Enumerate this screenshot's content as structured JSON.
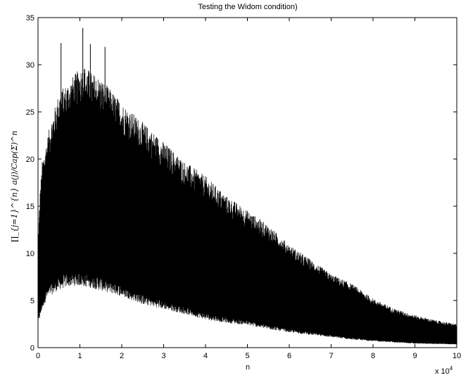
{
  "chart_data": {
    "type": "line",
    "title": "Testing the Widom condition)",
    "xlabel": "n",
    "ylabel": "∏_{j=1}^{n} a(j)/Cap(Σ)^n",
    "x_multiplier_label": "x 10",
    "x_multiplier_exponent": "4",
    "xlim": [
      0,
      10
    ],
    "ylim": [
      0,
      35
    ],
    "xticks": [
      "0",
      "1",
      "2",
      "3",
      "4",
      "5",
      "6",
      "7",
      "8",
      "9",
      "10"
    ],
    "yticks": [
      "0",
      "5",
      "10",
      "15",
      "20",
      "25",
      "30",
      "35"
    ],
    "grid": false,
    "color": "#000000",
    "series": [
      {
        "upper_envelope": {
          "x": [
            0,
            0.05,
            0.1,
            0.2,
            0.3,
            0.5,
            0.7,
            0.9,
            1.0,
            1.1,
            1.3,
            1.5,
            1.8,
            2.0,
            2.5,
            3.0,
            3.5,
            4.0,
            4.5,
            5.0,
            5.5,
            6.0,
            6.5,
            7.0,
            7.5,
            8.0,
            8.5,
            9.0,
            9.5,
            10.0
          ],
          "y": [
            11,
            16,
            19,
            21,
            23,
            26,
            27,
            28,
            28.5,
            28.8,
            28,
            27.5,
            26,
            25,
            23,
            21,
            19,
            17.5,
            15.5,
            14,
            12.5,
            10.5,
            9,
            7.5,
            6.5,
            5,
            4,
            3.3,
            2.8,
            2.4
          ]
        },
        "lower_envelope": {
          "x": [
            0,
            0.05,
            0.1,
            0.2,
            0.3,
            0.5,
            0.7,
            0.9,
            1.0,
            1.1,
            1.3,
            1.5,
            1.8,
            2.0,
            2.5,
            3.0,
            3.5,
            4.0,
            4.5,
            5.0,
            5.5,
            6.0,
            6.5,
            7.0,
            7.5,
            8.0,
            8.5,
            9.0,
            9.5,
            10.0
          ],
          "y": [
            3,
            3.8,
            4.8,
            6,
            6.5,
            7.2,
            7.6,
            7.7,
            7.7,
            7.6,
            7.4,
            7.1,
            6.7,
            6.4,
            5.4,
            4.8,
            4.2,
            3.5,
            3.1,
            2.8,
            2.3,
            1.9,
            1.6,
            1.3,
            1.0,
            0.8,
            0.65,
            0.5,
            0.45,
            0.4
          ]
        },
        "peaks": [
          {
            "x": 1.07,
            "y": 33.9
          },
          {
            "x": 0.55,
            "y": 32.3
          },
          {
            "x": 1.25,
            "y": 32.2
          },
          {
            "x": 1.6,
            "y": 31.9
          }
        ]
      }
    ]
  }
}
